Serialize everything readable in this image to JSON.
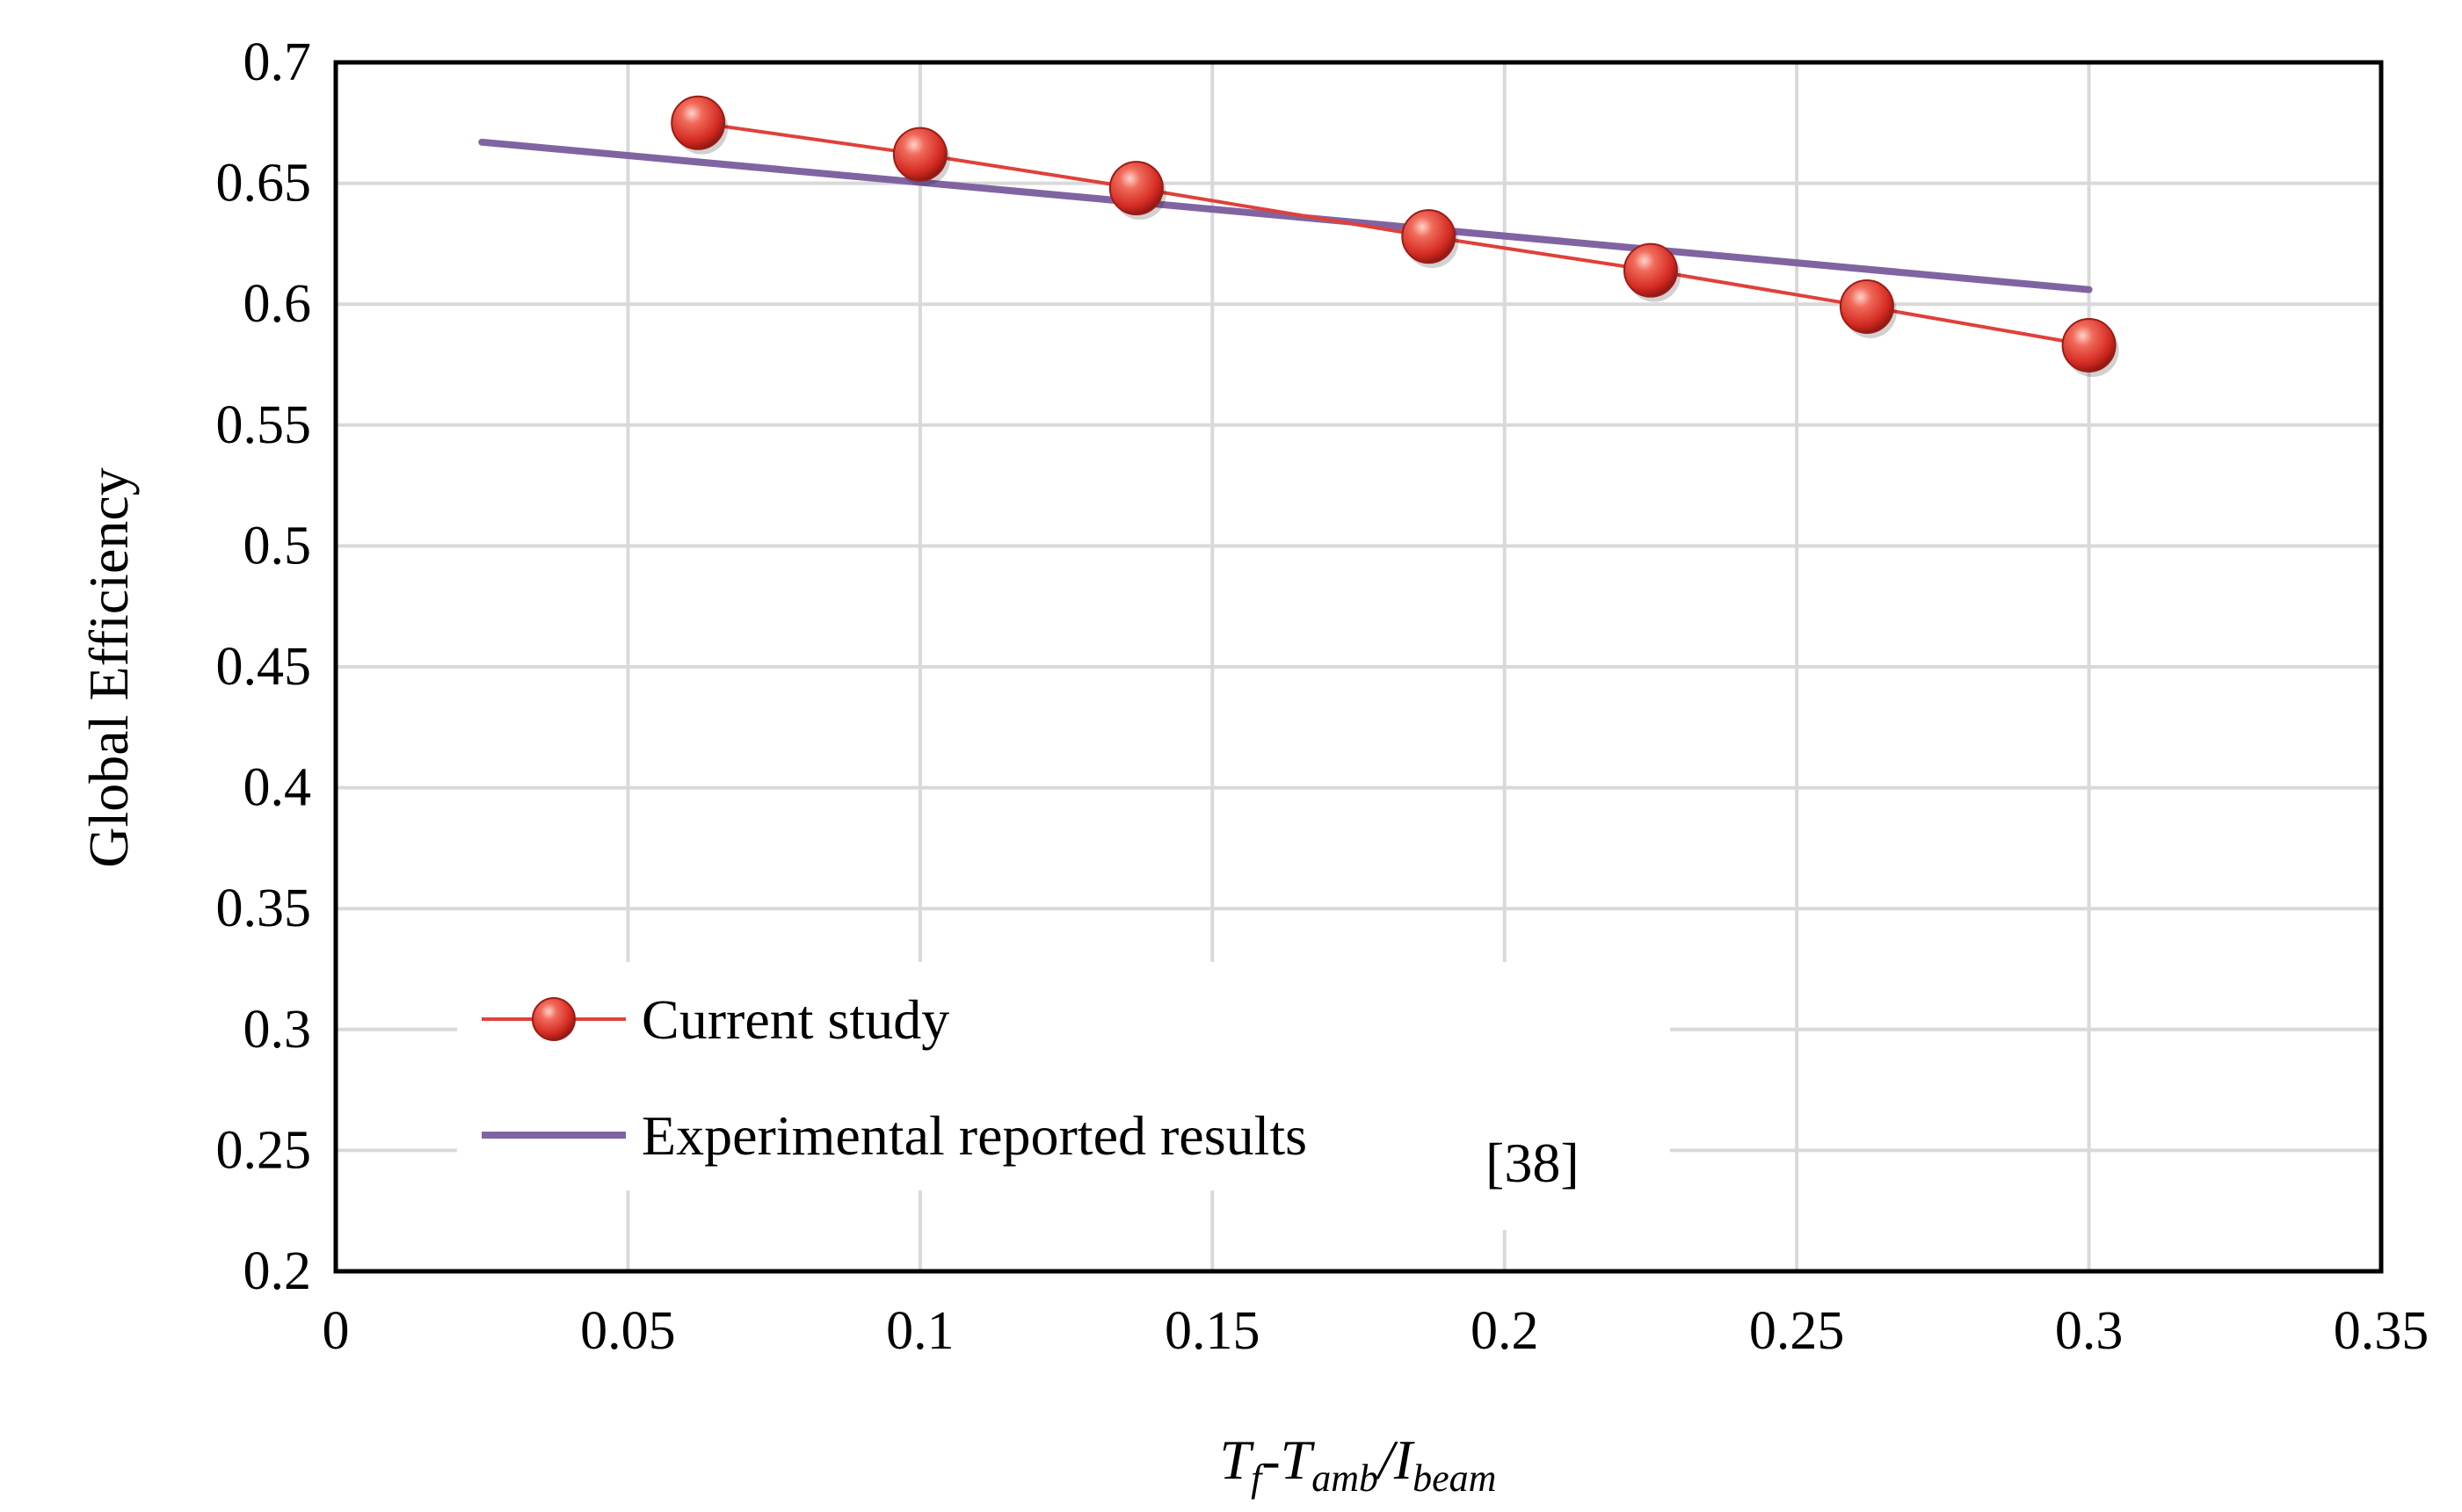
{
  "chart_data": {
    "type": "line",
    "xlabel": {
      "main": "T",
      "sub1": "f",
      "mid": "-T",
      "sub2": "amb",
      "slash": "/I",
      "sub3": "beam"
    },
    "ylabel": "Global Efficiency",
    "xlim": [
      0,
      0.35
    ],
    "ylim": [
      0.2,
      0.7
    ],
    "xticks": [
      0,
      0.05,
      0.1,
      0.15,
      0.2,
      0.25,
      0.3,
      0.35
    ],
    "xtick_labels": [
      "0",
      "0.05",
      "0.1",
      "0.15",
      "0.2",
      "0.25",
      "0.3",
      "0.35"
    ],
    "yticks": [
      0.2,
      0.25,
      0.3,
      0.35,
      0.4,
      0.45,
      0.5,
      0.55,
      0.6,
      0.65,
      0.7
    ],
    "ytick_labels": [
      "0.2",
      "0.25",
      "0.3",
      "0.35",
      "0.4",
      "0.45",
      "0.5",
      "0.55",
      "0.6",
      "0.65",
      "0.7"
    ],
    "grid": true,
    "legend_position": "bottom-left",
    "series": [
      {
        "name": "Current study",
        "style": "line-markers",
        "color": "#e0403a",
        "x": [
          0.062,
          0.1,
          0.137,
          0.187,
          0.225,
          0.262,
          0.3
        ],
        "y": [
          0.675,
          0.662,
          0.648,
          0.628,
          0.614,
          0.599,
          0.583
        ]
      },
      {
        "name": "Experimental reported results",
        "style": "line",
        "color": "#8064a2",
        "x": [
          0.025,
          0.3
        ],
        "y": [
          0.667,
          0.606
        ]
      }
    ],
    "annotation": "[38]"
  }
}
